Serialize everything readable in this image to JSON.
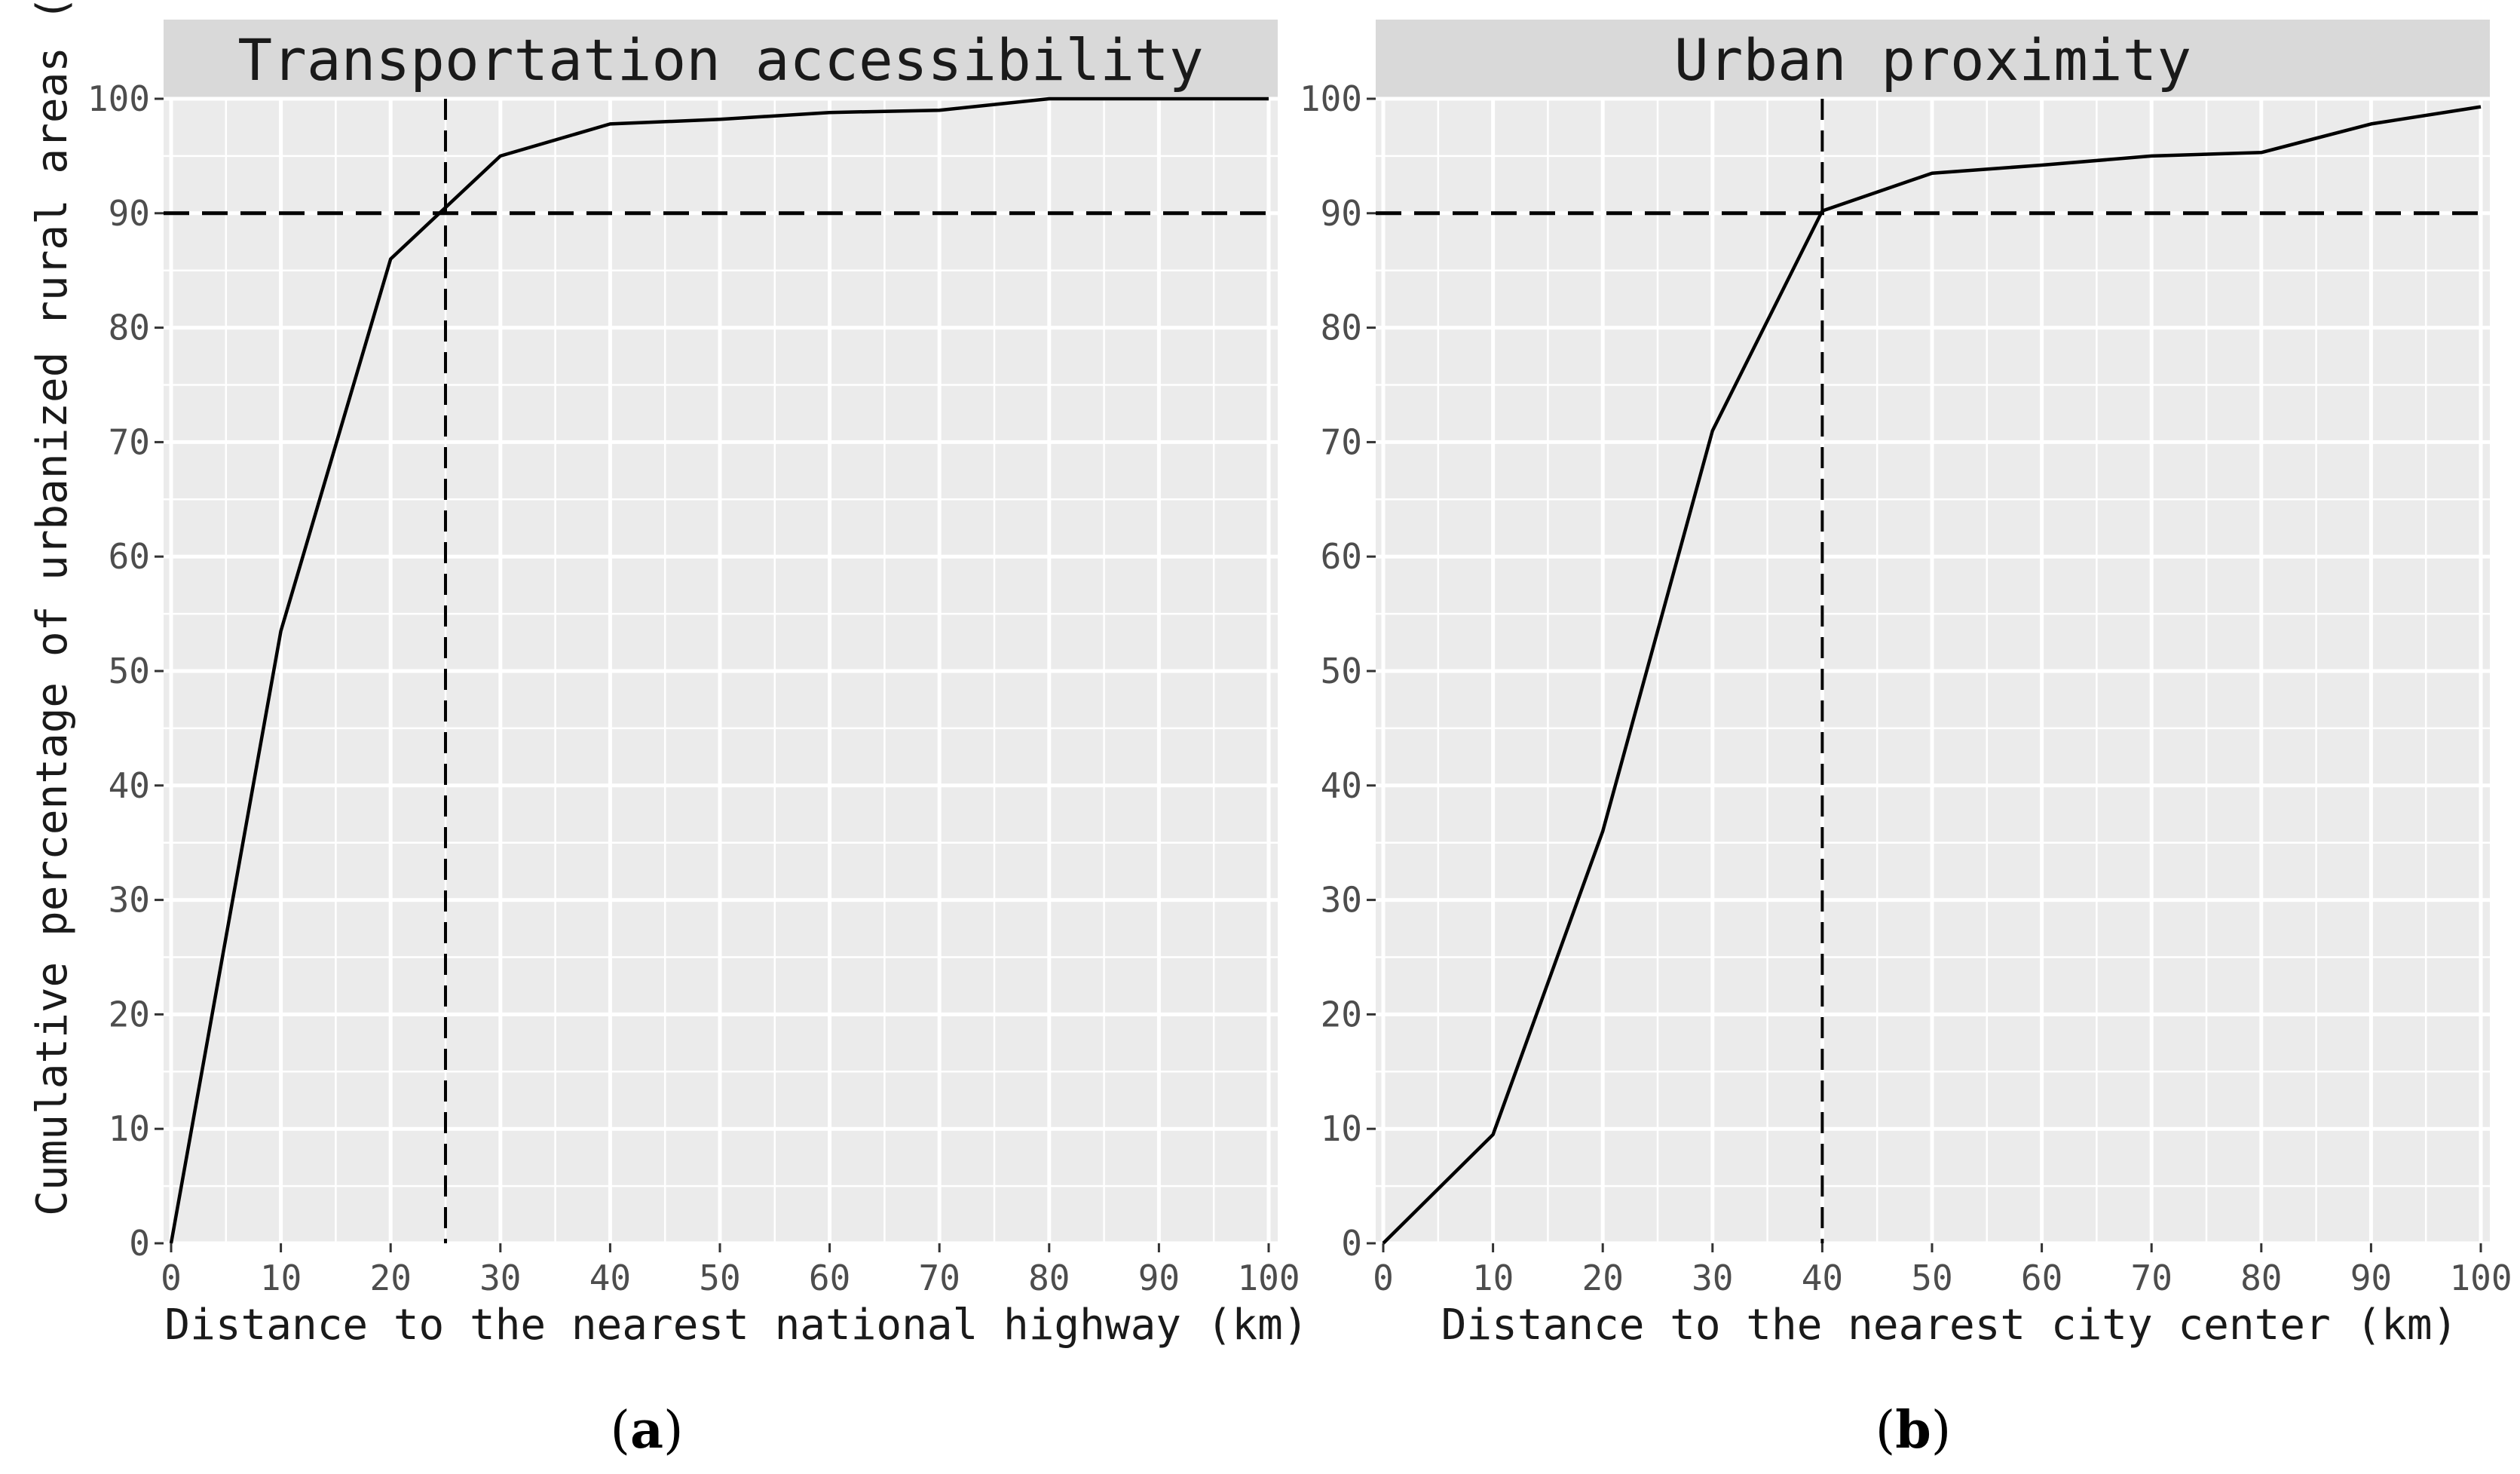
{
  "chart_data": [
    {
      "type": "line",
      "title": "Transportation accessibility",
      "xlabel": "Distance to the nearest national highway (km)",
      "ylabel": "Cumulative percentage of urbanized rural areas (%)",
      "caption_label": "a",
      "x": [
        0,
        10,
        20,
        30,
        40,
        50,
        60,
        70,
        80,
        90,
        100
      ],
      "values": [
        0,
        53.5,
        86,
        95,
        97.8,
        98.2,
        98.8,
        99,
        100,
        100,
        100
      ],
      "xlim": [
        0,
        100
      ],
      "ylim": [
        0,
        100
      ],
      "xticks": [
        0,
        10,
        20,
        30,
        40,
        50,
        60,
        70,
        80,
        90,
        100
      ],
      "yticks": [
        0,
        10,
        20,
        30,
        40,
        50,
        60,
        70,
        80,
        90,
        100
      ],
      "reference_lines": {
        "horizontal_y": 90,
        "vertical_x": 25
      },
      "grid": true
    },
    {
      "type": "line",
      "title": "Urban proximity",
      "xlabel": "Distance to the nearest city center (km)",
      "ylabel": "",
      "caption_label": "b",
      "x": [
        0,
        10,
        20,
        30,
        40,
        50,
        60,
        70,
        80,
        90,
        100
      ],
      "values": [
        0,
        9.5,
        36,
        71,
        90.2,
        93.5,
        94.2,
        95,
        95.3,
        97.8,
        99.3
      ],
      "xlim": [
        0,
        100
      ],
      "ylim": [
        0,
        100
      ],
      "xticks": [
        0,
        10,
        20,
        30,
        40,
        50,
        60,
        70,
        80,
        90,
        100
      ],
      "yticks": [
        0,
        10,
        20,
        30,
        40,
        50,
        60,
        70,
        80,
        90,
        100
      ],
      "reference_lines": {
        "horizontal_y": 90,
        "vertical_x": 40
      },
      "grid": true
    }
  ]
}
